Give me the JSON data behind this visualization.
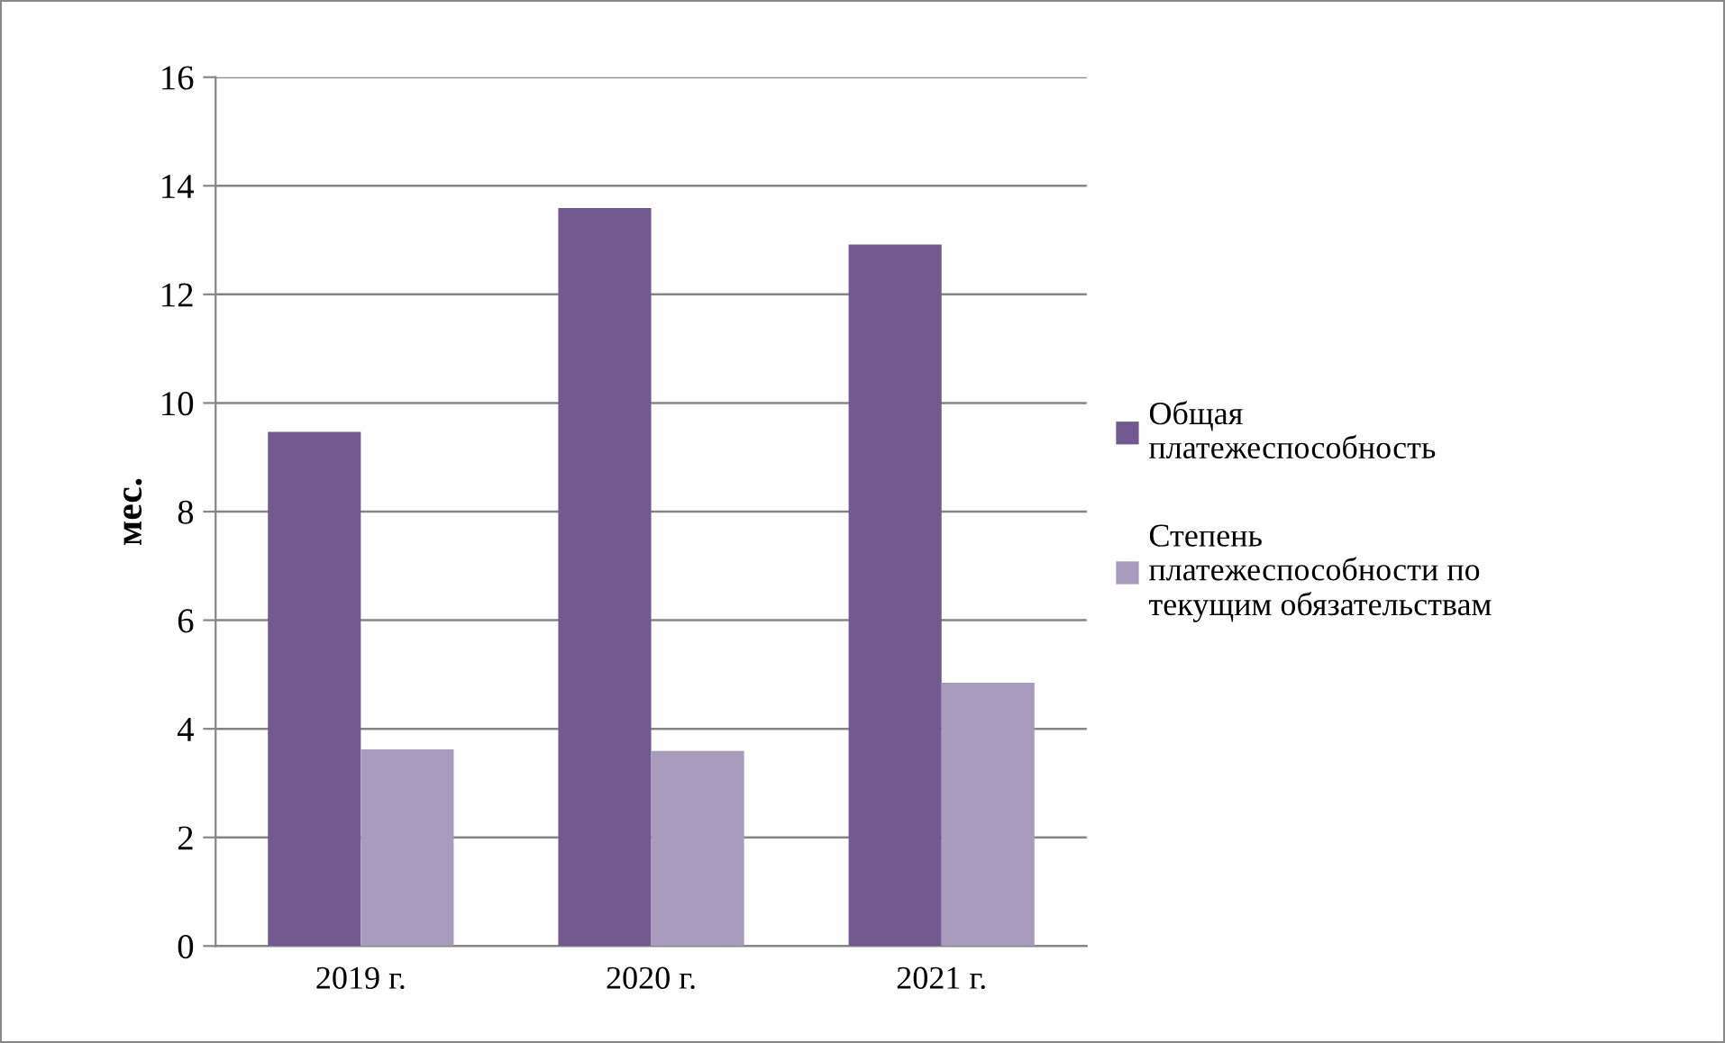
{
  "chart_data": {
    "type": "bar",
    "ylabel": "мес.",
    "categories": [
      "2019 г.",
      "2020 г.",
      "2021 г."
    ],
    "series": [
      {
        "name": "Общая\nплатежеспособность",
        "color": "#725990",
        "values": [
          9.47,
          13.59,
          12.92
        ]
      },
      {
        "name": "Степень\nплатежеспособности по\nтекущим обязательствам",
        "color": "#a99bbd",
        "values": [
          3.62,
          3.59,
          4.85
        ]
      }
    ],
    "ylim": [
      0,
      16
    ],
    "yticks": [
      0,
      2,
      4,
      6,
      8,
      10,
      12,
      14,
      16
    ],
    "grid": "y",
    "legend": "right"
  }
}
